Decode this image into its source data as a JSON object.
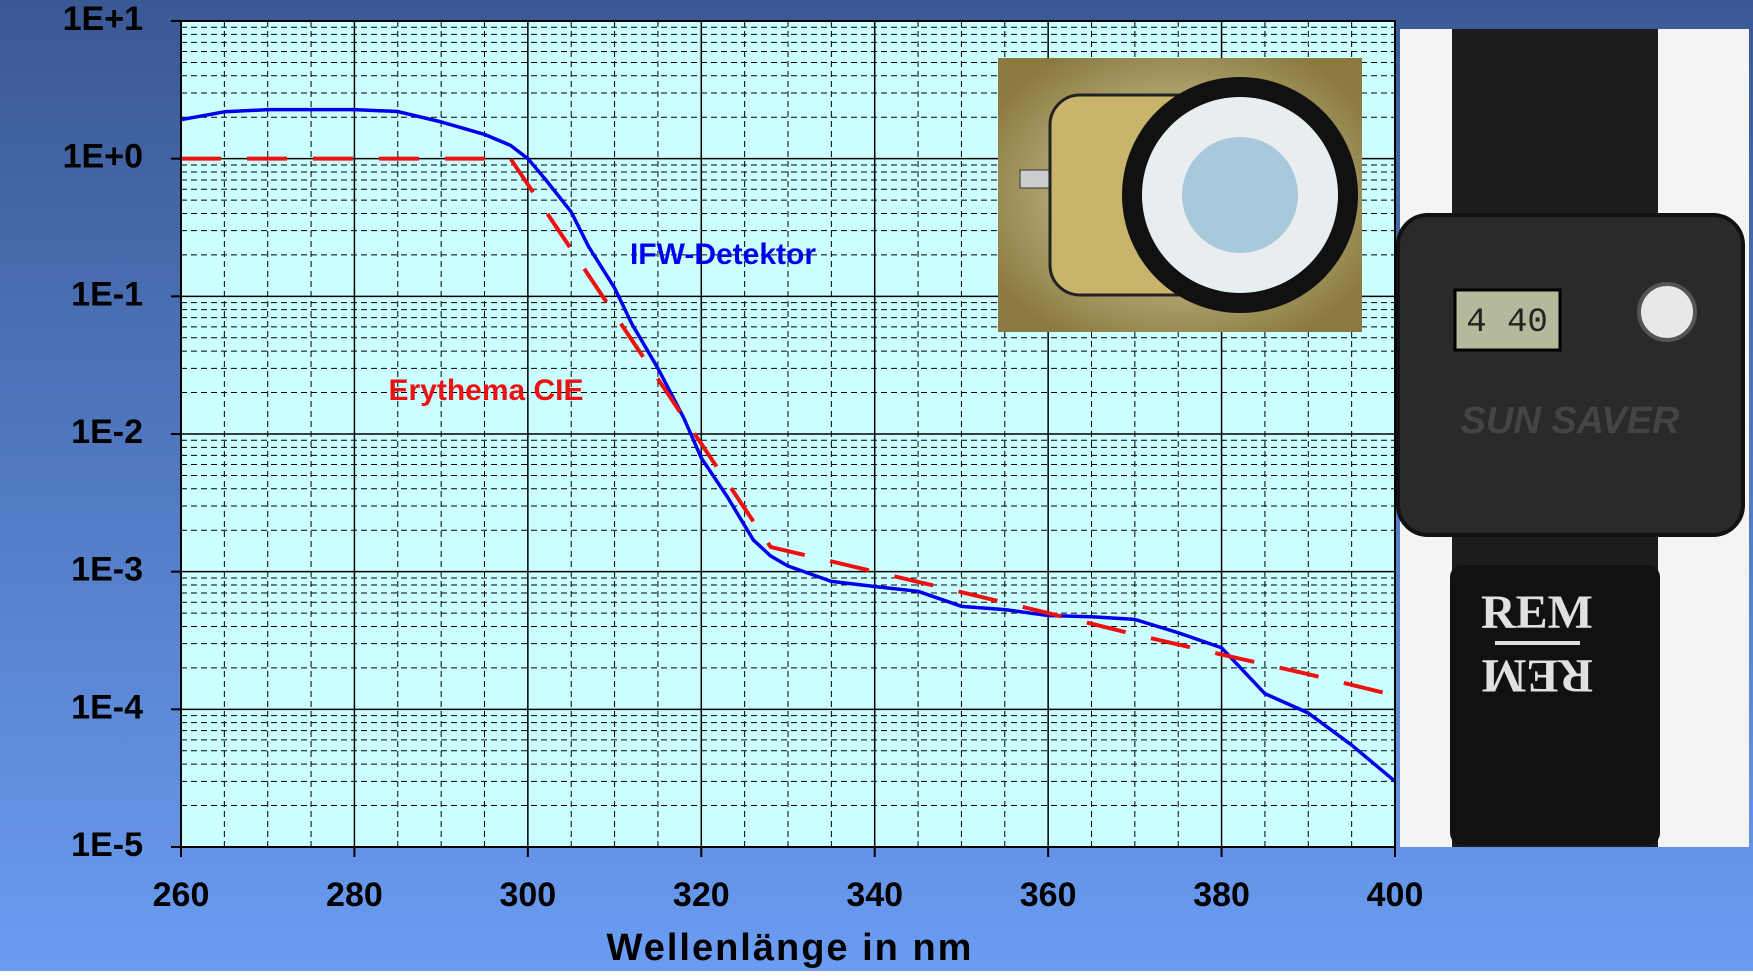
{
  "chart_data": {
    "type": "line",
    "x_label": "Wellenlänge in nm",
    "xlim": [
      260,
      400
    ],
    "xticks": [
      260,
      280,
      300,
      320,
      340,
      360,
      380,
      400
    ],
    "ylim": [
      1e-05,
      10
    ],
    "y_scale": "log",
    "yticks": [
      {
        "value": 1e-05,
        "label": "1E-5"
      },
      {
        "value": 0.0001,
        "label": "1E-4"
      },
      {
        "value": 0.001,
        "label": "1E-3"
      },
      {
        "value": 0.01,
        "label": "1E-2"
      },
      {
        "value": 0.1,
        "label": "1E-1"
      },
      {
        "value": 1,
        "label": "1E+0"
      },
      {
        "value": 10,
        "label": "1E+1"
      }
    ],
    "grid": true,
    "minor_grid": true,
    "series": [
      {
        "name": "IFW-Detektor",
        "color": "#0000ee",
        "dashed": false,
        "x": [
          260,
          265,
          270,
          280,
          285,
          290,
          295,
          298,
          300,
          302,
          305,
          307,
          310,
          312,
          315,
          318,
          320,
          323,
          326,
          328,
          330,
          335,
          340,
          345,
          350,
          355,
          360,
          365,
          370,
          375,
          380,
          385,
          390,
          395,
          400
        ],
        "values": [
          1.92,
          2.19,
          2.27,
          2.27,
          2.2,
          1.85,
          1.5,
          1.25,
          1.0,
          0.71,
          0.41,
          0.23,
          0.115,
          0.063,
          0.03,
          0.013,
          0.0067,
          0.0035,
          0.0017,
          0.0013,
          0.0011,
          0.00085,
          0.00078,
          0.00072,
          0.00056,
          0.00053,
          0.00048,
          0.00047,
          0.00045,
          0.00036,
          0.00028,
          0.00013,
          9.4e-05,
          5.5e-05,
          3e-05
        ]
      },
      {
        "name": "Erythema CIE",
        "color": "#ee1111",
        "dashed": true,
        "x": [
          260,
          298,
          305,
          310,
          315,
          320,
          325,
          328,
          340,
          350,
          360,
          370,
          380,
          390,
          400
        ],
        "values": [
          1,
          1,
          0.22,
          0.0741,
          0.0251,
          0.0085,
          0.00288,
          0.00151,
          0.001,
          0.00071,
          0.0005,
          0.00035,
          0.00025,
          0.00018,
          0.000126
        ]
      }
    ]
  },
  "watch_display": "4 40",
  "watch_brand": "SUN SAVER",
  "strap_label": "REM"
}
